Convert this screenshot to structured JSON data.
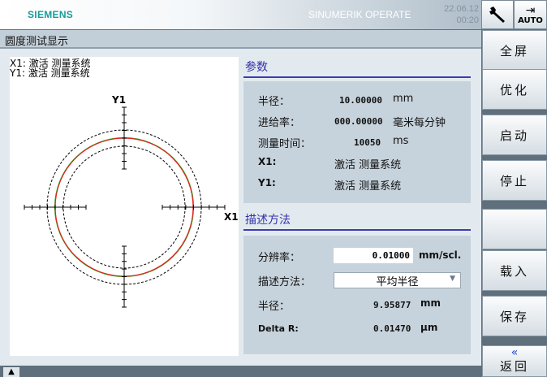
{
  "header": {
    "logo": "SIEMENS",
    "product": "SINUMERIK OPERATE",
    "date": "22.06.12",
    "time": "00:20",
    "auto_label": "AUTO"
  },
  "title": "圆度测试显示",
  "plot": {
    "legend_x": "X1: 激活 测量系统",
    "legend_y": "Y1: 激活 测量系统",
    "x_axis": "X1",
    "y_axis": "Y1",
    "colors": {
      "measured": "#e02020",
      "reference": "#20c020",
      "tolerance": "#000000"
    }
  },
  "params": {
    "heading": "参数",
    "radius_label": "半径：",
    "radius_value": "10.00000",
    "radius_unit": "mm",
    "feed_label": "进给率：",
    "feed_value": "000.00000",
    "feed_unit": "毫米每分钟",
    "time_label": "测量时间：",
    "time_value": "10050",
    "time_unit": "ms",
    "x1_label": "X1:",
    "x1_value": "激活 测量系统",
    "y1_label": "Y1:",
    "y1_value": "激活 测量系统"
  },
  "display": {
    "heading": "描述方法",
    "resolution_label": "分辨率：",
    "resolution_value": "0.01000",
    "resolution_unit": "mm/scl.",
    "method_label": "描述方法：",
    "method_value": "平均半径",
    "radius_label": "半径：",
    "radius_value": "9.95877",
    "radius_unit": "mm",
    "delta_label": "Delta R:",
    "delta_value": "0.01470",
    "delta_unit": "µm"
  },
  "softkeys": [
    "全屏",
    "优化",
    "启动",
    "停止",
    "",
    "载入",
    "保存"
  ],
  "back_label": "返回"
}
